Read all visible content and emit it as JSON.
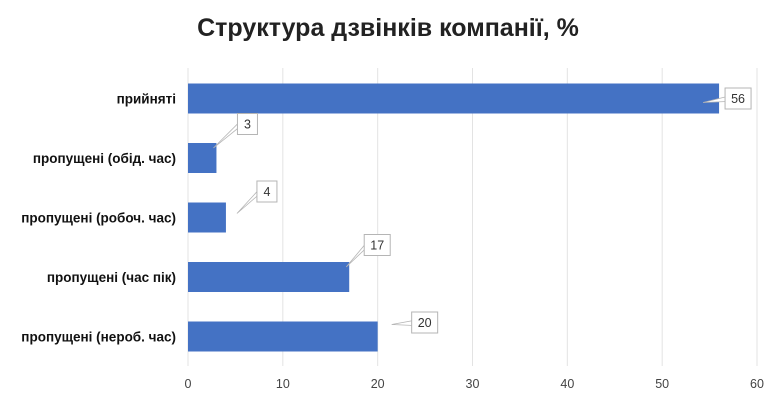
{
  "chart_data": {
    "type": "bar",
    "orientation": "horizontal",
    "title": "Структура дзвінків компанії, %",
    "categories": [
      "прийняті",
      "пропущені (обід. час)",
      "пропущені (робоч. час)",
      "пропущені (час пік)",
      "пропущені (нероб. час)"
    ],
    "values": [
      56,
      3,
      4,
      17,
      20
    ],
    "data_labels": [
      "56",
      "3",
      "4",
      "17",
      "20"
    ],
    "xlim": [
      0,
      60
    ],
    "x_ticks": [
      "0",
      "10",
      "20",
      "30",
      "40",
      "50",
      "60"
    ],
    "grid": true,
    "legend": "none",
    "colors": {
      "bar": "#4472C4",
      "grid": "#e3e3e3",
      "callout_border": "#b5b5b5"
    }
  }
}
